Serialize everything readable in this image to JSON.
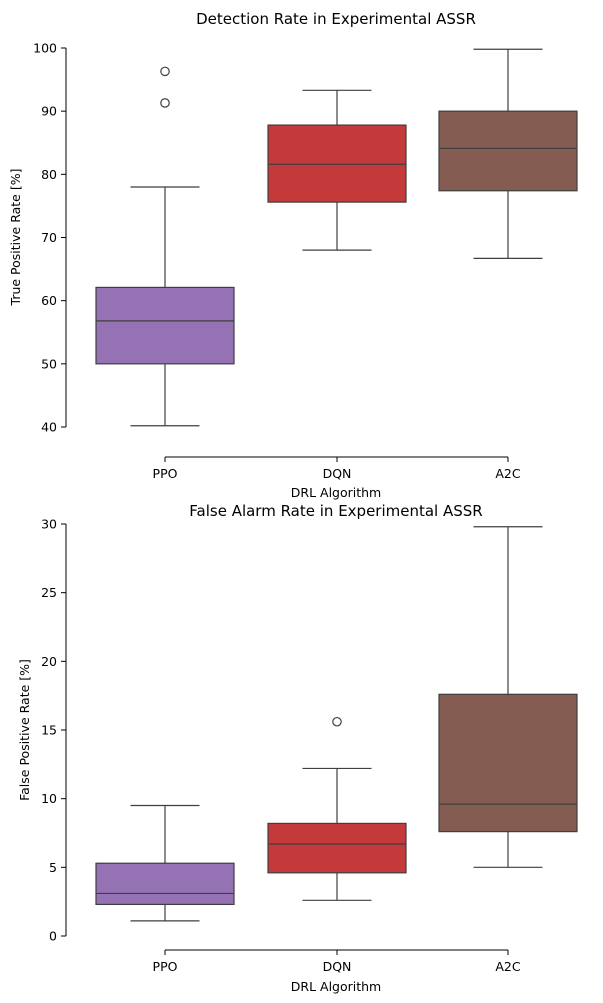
{
  "chart_data": [
    {
      "type": "box",
      "title": "Detection Rate in Experimental ASSR",
      "xlabel": "DRL Algorithm",
      "ylabel": "True Positive Rate [%]",
      "ylim": [
        40,
        100
      ],
      "yticks": [
        40,
        50,
        60,
        70,
        80,
        90,
        100
      ],
      "categories": [
        "PPO",
        "DQN",
        "A2C"
      ],
      "colors": [
        "#9472b4",
        "#c43a3b",
        "#845c52"
      ],
      "boxes": [
        {
          "whisker_low": 40.2,
          "q1": 50.0,
          "median": 56.8,
          "q3": 62.1,
          "whisker_high": 78.0,
          "outliers": [
            91.3,
            96.3
          ]
        },
        {
          "whisker_low": 68.0,
          "q1": 75.6,
          "median": 81.6,
          "q3": 87.8,
          "whisker_high": 93.3,
          "outliers": []
        },
        {
          "whisker_low": 66.7,
          "q1": 77.4,
          "median": 84.1,
          "q3": 90.0,
          "whisker_high": 99.8,
          "outliers": []
        }
      ]
    },
    {
      "type": "box",
      "title": "False Alarm Rate in Experimental ASSR",
      "xlabel": "DRL Algorithm",
      "ylabel": "False Positive Rate [%]",
      "ylim": [
        0,
        30
      ],
      "yticks": [
        0,
        5,
        10,
        15,
        20,
        25,
        30
      ],
      "categories": [
        "PPO",
        "DQN",
        "A2C"
      ],
      "colors": [
        "#9472b4",
        "#c43a3b",
        "#845c52"
      ],
      "boxes": [
        {
          "whisker_low": 1.1,
          "q1": 2.3,
          "median": 3.1,
          "q3": 5.3,
          "whisker_high": 9.5,
          "outliers": []
        },
        {
          "whisker_low": 2.6,
          "q1": 4.6,
          "median": 6.7,
          "q3": 8.2,
          "whisker_high": 12.2,
          "outliers": [
            15.6
          ]
        },
        {
          "whisker_low": 5.0,
          "q1": 7.6,
          "median": 9.6,
          "q3": 17.6,
          "whisker_high": 29.8,
          "outliers": []
        }
      ]
    }
  ]
}
